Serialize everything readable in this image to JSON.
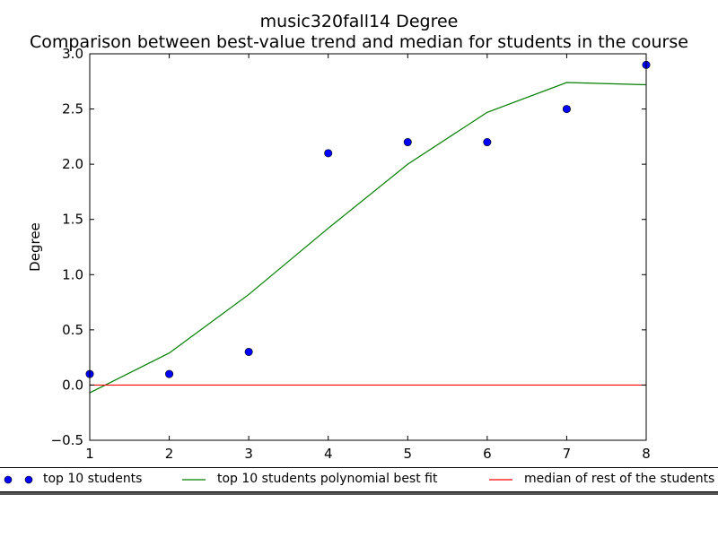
{
  "chart_data": {
    "type": "line",
    "title": "music320fall14 Degree",
    "subtitle": "Comparison between best-value trend and median for students in the course",
    "xlabel": "",
    "ylabel": "Degree",
    "xlim": [
      1,
      8
    ],
    "ylim": [
      -0.5,
      3.0
    ],
    "xticks": [
      "1",
      "2",
      "3",
      "4",
      "5",
      "6",
      "7",
      "8"
    ],
    "yticks": [
      "−0.5",
      "0.0",
      "0.5",
      "1.0",
      "1.5",
      "2.0",
      "2.5",
      "3.0"
    ],
    "grid": false,
    "legend_position": "bottom",
    "series": [
      {
        "name": "top 10 students",
        "kind": "scatter",
        "color": "#0000ff",
        "x": [
          1,
          2,
          3,
          4,
          5,
          6,
          7,
          8
        ],
        "y": [
          0.1,
          0.1,
          0.3,
          2.1,
          2.2,
          2.2,
          2.5,
          2.9
        ]
      },
      {
        "name": "top 10 students polynomial best fit",
        "kind": "line",
        "color": "#008000",
        "x": [
          1,
          2,
          3,
          4,
          5,
          6,
          7,
          8
        ],
        "y": [
          -0.07,
          0.29,
          0.82,
          1.42,
          2.0,
          2.47,
          2.74,
          2.72
        ]
      },
      {
        "name": "median of rest of the students",
        "kind": "line",
        "color": "#ff0000",
        "x": [
          1,
          8
        ],
        "y": [
          0.0,
          0.0
        ]
      }
    ]
  }
}
